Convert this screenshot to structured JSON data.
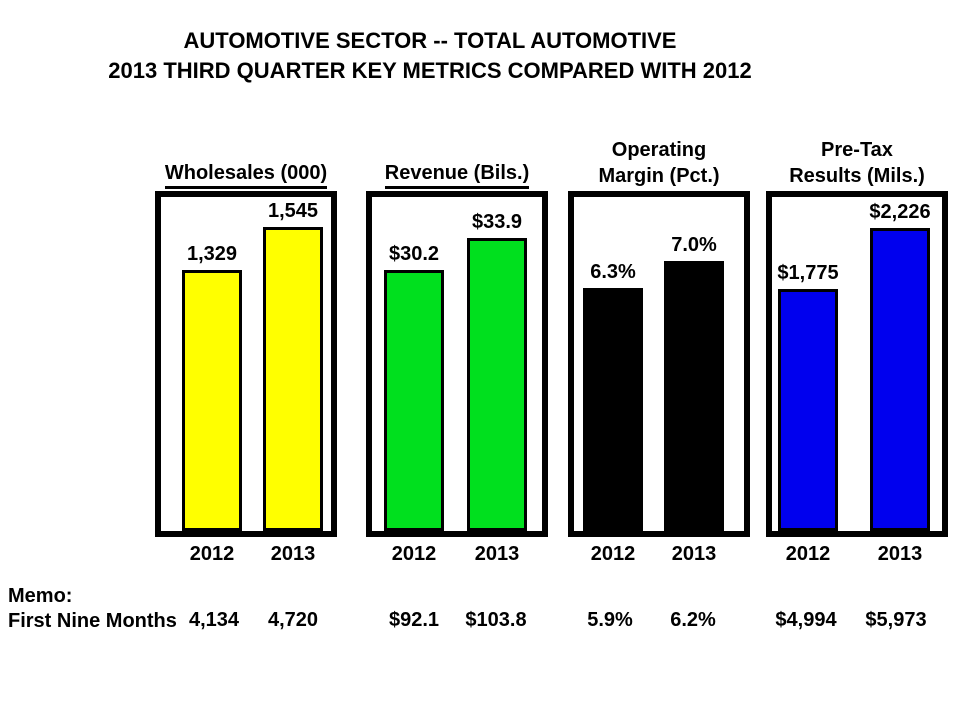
{
  "slide": {
    "title_line1": "AUTOMOTIVE SECTOR -- TOTAL AUTOMOTIVE",
    "title_line2": "2013 THIRD QUARTER KEY METRICS COMPARED WITH 2012",
    "memo_label": "Memo:",
    "memo_row_label": "First Nine Months"
  },
  "chart_data": [
    {
      "type": "bar",
      "title": "Wholesales (000)",
      "title_lines": [
        "Wholesales (000)"
      ],
      "title_underlined": true,
      "categories": [
        "2012",
        "2013"
      ],
      "values": [
        1329,
        1545
      ],
      "value_labels": [
        "1,329",
        "1,545"
      ],
      "bar_color": "#FFFF00",
      "ylim": [
        0,
        1700
      ],
      "memo_first_nine_months": [
        "4,134",
        "4,720"
      ]
    },
    {
      "type": "bar",
      "title": "Revenue (Bils.)",
      "title_lines": [
        "Revenue (Bils.)"
      ],
      "title_underlined": true,
      "categories": [
        "2012",
        "2013"
      ],
      "values": [
        30.2,
        33.9
      ],
      "value_labels": [
        "$30.2",
        "$33.9"
      ],
      "bar_color": "#00E01E",
      "ylim": [
        0,
        38.7
      ],
      "memo_first_nine_months": [
        "$92.1",
        "$103.8"
      ]
    },
    {
      "type": "bar",
      "title": "Operating Margin (Pct.)",
      "title_lines": [
        "Operating",
        "Margin (Pct.)"
      ],
      "title_underlined": false,
      "categories": [
        "2012",
        "2013"
      ],
      "values": [
        6.3,
        7.0
      ],
      "value_labels": [
        "6.3%",
        "7.0%"
      ],
      "bar_color": "#000000",
      "ylim": [
        0,
        8.65
      ],
      "memo_first_nine_months": [
        "5.9%",
        "6.2%"
      ]
    },
    {
      "type": "bar",
      "title": "Pre-Tax Results (Mils.)",
      "title_lines": [
        "Pre-Tax",
        "Results (Mils.)"
      ],
      "title_underlined": false,
      "categories": [
        "2012",
        "2013"
      ],
      "values": [
        1775,
        2226
      ],
      "value_labels": [
        "$1,775",
        "$2,226"
      ],
      "bar_color": "#0000EE",
      "ylim": [
        0,
        2450
      ],
      "memo_first_nine_months": [
        "$4,994",
        "$5,973"
      ]
    }
  ]
}
